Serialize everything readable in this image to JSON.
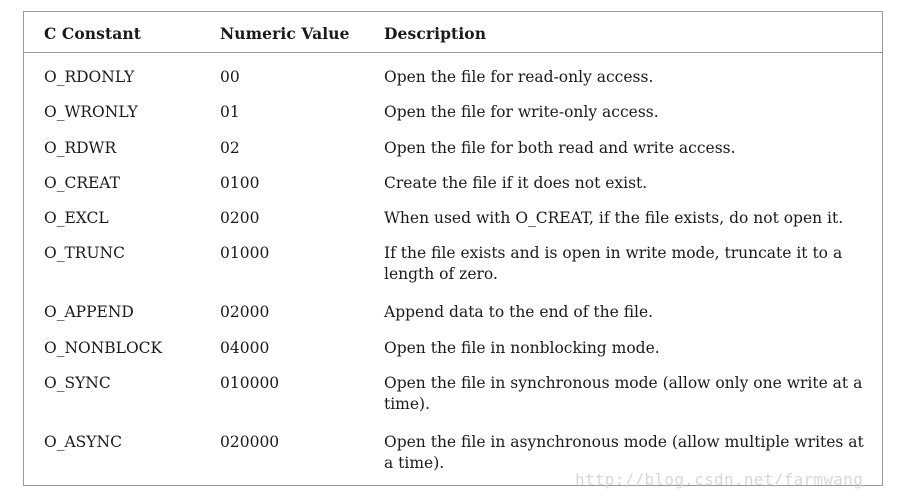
{
  "table": {
    "headers": {
      "constant": "C Constant",
      "numeric": "Numeric Value",
      "description": "Description"
    },
    "rows": [
      {
        "constant": "O_RDONLY",
        "value": "00",
        "description": "Open the file for read-only access."
      },
      {
        "constant": "O_WRONLY",
        "value": "01",
        "description": "Open the file for write-only access."
      },
      {
        "constant": "O_RDWR",
        "value": "02",
        "description": "Open the file for both read and write access."
      },
      {
        "constant": "O_CREAT",
        "value": "0100",
        "description": "Create the file if it does not exist."
      },
      {
        "constant": "O_EXCL",
        "value": "0200",
        "description": "When used with O_CREAT, if the file exists, do not open it."
      },
      {
        "constant": "O_TRUNC",
        "value": "01000",
        "description": "If the file exists and is open in write mode, truncate it to a length of zero."
      },
      {
        "constant": "O_APPEND",
        "value": "02000",
        "description": "Append data to the end of the file."
      },
      {
        "constant": "O_NONBLOCK",
        "value": "04000",
        "description": "Open the file in nonblocking mode."
      },
      {
        "constant": "O_SYNC",
        "value": "010000",
        "description": "Open the file in synchronous mode (allow only one write at a time)."
      },
      {
        "constant": "O_ASYNC",
        "value": "020000",
        "description": "Open the file in asynchronous mode (allow multiple writes at a time)."
      }
    ]
  },
  "watermark": "http://blog.csdn.net/farmwang"
}
